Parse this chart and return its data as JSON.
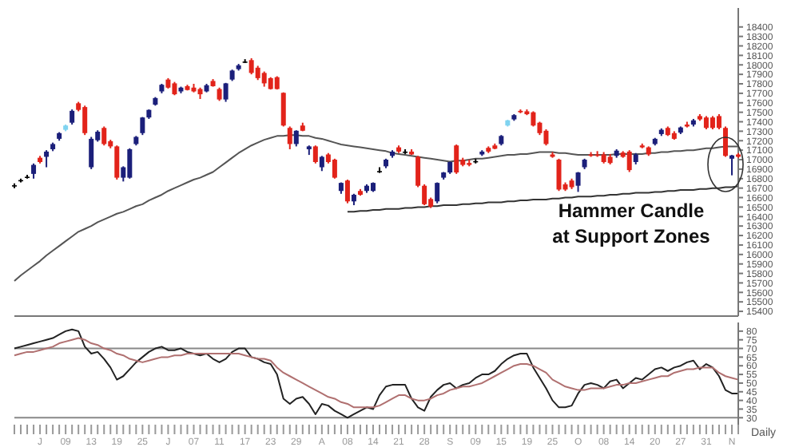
{
  "chart_data": [
    {
      "type": "candlestick",
      "categories": [
        null,
        null,
        null,
        null,
        null,
        null,
        null,
        null,
        null,
        null,
        null,
        null,
        null,
        null,
        null,
        null,
        null,
        null,
        null,
        null,
        null,
        null,
        null,
        null,
        null,
        null,
        null,
        null,
        null,
        null,
        null,
        null,
        null,
        null,
        null,
        null,
        null,
        null,
        null,
        null,
        null,
        null,
        null,
        null,
        null,
        null,
        null,
        null,
        null,
        null,
        null,
        null,
        null,
        null,
        null,
        null,
        null,
        null,
        null,
        null,
        null,
        null,
        null,
        null,
        null,
        null,
        null,
        null,
        null,
        null,
        null,
        null,
        null,
        null,
        null,
        null,
        null,
        null,
        null,
        null,
        null,
        null,
        null,
        null,
        null,
        null,
        null,
        null,
        null,
        null,
        null,
        null,
        null,
        null,
        null,
        null,
        null,
        null,
        null,
        null,
        null,
        null,
        null,
        null,
        null,
        null,
        null,
        null,
        null,
        null,
        null,
        null,
        null,
        null
      ],
      "ohlc": [
        [
          16725,
          16750,
          16700,
          16730
        ],
        [
          16780,
          16800,
          16760,
          16785
        ],
        [
          16815,
          16840,
          16800,
          16820
        ],
        [
          16850,
          16960,
          16800,
          16945
        ],
        [
          17020,
          17040,
          16960,
          16975
        ],
        [
          17030,
          17100,
          16920,
          17085
        ],
        [
          17110,
          17180,
          17090,
          17165
        ],
        [
          17220,
          17290,
          17200,
          17280
        ],
        [
          17315,
          17370,
          17300,
          17360
        ],
        [
          17390,
          17530,
          17370,
          17515
        ],
        [
          17595,
          17610,
          17510,
          17525
        ],
        [
          17555,
          17570,
          17260,
          17280
        ],
        [
          16920,
          17240,
          16900,
          17220
        ],
        [
          17205,
          17310,
          17190,
          17295
        ],
        [
          17335,
          17350,
          17150,
          17165
        ],
        [
          17195,
          17210,
          17120,
          17140
        ],
        [
          17140,
          17150,
          16790,
          16810
        ],
        [
          16810,
          16930,
          16770,
          16920
        ],
        [
          16810,
          17120,
          16800,
          17110
        ],
        [
          17165,
          17250,
          17150,
          17240
        ],
        [
          17280,
          17450,
          17260,
          17445
        ],
        [
          17445,
          17530,
          17430,
          17525
        ],
        [
          17580,
          17660,
          17570,
          17650
        ],
        [
          17720,
          17800,
          17700,
          17790
        ],
        [
          17845,
          17860,
          17750,
          17760
        ],
        [
          17805,
          17820,
          17680,
          17690
        ],
        [
          17720,
          17770,
          17700,
          17760
        ],
        [
          17775,
          17790,
          17730,
          17735
        ],
        [
          17760,
          17800,
          17710,
          17720
        ],
        [
          17745,
          17760,
          17640,
          17690
        ],
        [
          17720,
          17800,
          17710,
          17785
        ],
        [
          17830,
          17850,
          17770,
          17775
        ],
        [
          17745,
          17760,
          17620,
          17635
        ],
        [
          17635,
          17810,
          17610,
          17805
        ],
        [
          17845,
          17950,
          17830,
          17940
        ],
        [
          17955,
          18010,
          17940,
          17995
        ],
        [
          18035,
          18060,
          18020,
          18035
        ],
        [
          18050,
          18070,
          17900,
          17915
        ],
        [
          17970,
          17990,
          17840,
          17860
        ],
        [
          17915,
          17930,
          17770,
          17805
        ],
        [
          17860,
          17870,
          17740,
          17745
        ],
        [
          17870,
          17880,
          17740,
          17745
        ],
        [
          17705,
          17710,
          17350,
          17360
        ],
        [
          17335,
          17350,
          17110,
          17165
        ],
        [
          17165,
          17310,
          17140,
          17305
        ],
        [
          17360,
          17390,
          17300,
          17305
        ],
        [
          17110,
          17150,
          17050,
          17140
        ],
        [
          17140,
          17150,
          16960,
          16975
        ],
        [
          16920,
          17040,
          16880,
          17030
        ],
        [
          17055,
          17070,
          16960,
          16975
        ],
        [
          17000,
          17010,
          16800,
          16810
        ],
        [
          16670,
          16760,
          16640,
          16755
        ],
        [
          16780,
          16790,
          16540,
          16560
        ],
        [
          16560,
          16640,
          16520,
          16630
        ],
        [
          16670,
          16690,
          16620,
          16630
        ],
        [
          16670,
          16740,
          16650,
          16725
        ],
        [
          16670,
          16760,
          16660,
          16755
        ],
        [
          16880,
          16920,
          16860,
          16880
        ],
        [
          16930,
          17010,
          16910,
          17000
        ],
        [
          17040,
          17100,
          17020,
          17085
        ],
        [
          17130,
          17150,
          17070,
          17085
        ],
        [
          17085,
          17110,
          17060,
          17080
        ],
        [
          17085,
          17110,
          17050,
          17055
        ],
        [
          17030,
          17040,
          16710,
          16725
        ],
        [
          16725,
          16740,
          16520,
          16530
        ],
        [
          16585,
          16600,
          16490,
          16505
        ],
        [
          16560,
          16760,
          16540,
          16755
        ],
        [
          16810,
          16870,
          16790,
          16865
        ],
        [
          16865,
          16980,
          16850,
          16975
        ],
        [
          17150,
          17160,
          16850,
          16865
        ],
        [
          17000,
          17020,
          16930,
          16945
        ],
        [
          16965,
          17000,
          16930,
          16945
        ],
        [
          16985,
          17010,
          16960,
          16985
        ],
        [
          17055,
          17100,
          17040,
          17085
        ],
        [
          17125,
          17140,
          17070,
          17085
        ],
        [
          17150,
          17170,
          17110,
          17115
        ],
        [
          17165,
          17260,
          17150,
          17250
        ],
        [
          17360,
          17420,
          17350,
          17415
        ],
        [
          17425,
          17480,
          17410,
          17470
        ],
        [
          17515,
          17530,
          17490,
          17500
        ],
        [
          17510,
          17530,
          17470,
          17480
        ],
        [
          17500,
          17510,
          17350,
          17360
        ],
        [
          17390,
          17400,
          17260,
          17280
        ],
        [
          17305,
          17320,
          17150,
          17165
        ],
        [
          17055,
          17080,
          17020,
          17030
        ],
        [
          17000,
          17010,
          16670,
          16685
        ],
        [
          16740,
          16760,
          16670,
          16685
        ],
        [
          16780,
          16800,
          16690,
          16710
        ],
        [
          16725,
          16870,
          16660,
          16865
        ],
        [
          16920,
          17010,
          16900,
          17000
        ],
        [
          17055,
          17080,
          17030,
          17040
        ],
        [
          17055,
          17090,
          17030,
          17040
        ],
        [
          17055,
          17080,
          16960,
          16975
        ],
        [
          17030,
          17060,
          16950,
          16965
        ],
        [
          17040,
          17110,
          17020,
          17095
        ],
        [
          17075,
          17090,
          17020,
          17030
        ],
        [
          17085,
          17100,
          16870,
          16890
        ],
        [
          16975,
          17070,
          16950,
          17055
        ],
        [
          17150,
          17170,
          17120,
          17130
        ],
        [
          17130,
          17140,
          17040,
          17055
        ],
        [
          17165,
          17230,
          17150,
          17220
        ],
        [
          17270,
          17330,
          17250,
          17315
        ],
        [
          17335,
          17350,
          17250,
          17260
        ],
        [
          17280,
          17300,
          17210,
          17220
        ],
        [
          17285,
          17350,
          17270,
          17340
        ],
        [
          17370,
          17400,
          17340,
          17350
        ],
        [
          17370,
          17430,
          17350,
          17415
        ],
        [
          17460,
          17480,
          17410,
          17425
        ],
        [
          17445,
          17460,
          17320,
          17335
        ],
        [
          17445,
          17460,
          17320,
          17335
        ],
        [
          17460,
          17480,
          17320,
          17335
        ],
        [
          17335,
          17350,
          17030,
          17040
        ],
        [
          17010,
          17050,
          16835,
          17045
        ],
        [
          17055,
          17070,
          17020,
          17030
        ]
      ],
      "colors": [
        "#000000",
        "#000000",
        "#000000",
        "#1b1f7a",
        "#e2231a",
        "#1b1f7a",
        "#1b1f7a",
        "#1b1f7a",
        "#7fd3f0",
        "#1b1f7a",
        "#e2231a",
        "#e2231a",
        "#1b1f7a",
        "#1b1f7a",
        "#e2231a",
        "#e2231a",
        "#e2231a",
        "#1b1f7a",
        "#1b1f7a",
        "#1b1f7a",
        "#1b1f7a",
        "#1b1f7a",
        "#1b1f7a",
        "#1b1f7a",
        "#e2231a",
        "#e2231a",
        "#1b1f7a",
        "#e2231a",
        "#e2231a",
        "#e2231a",
        "#1b1f7a",
        "#e2231a",
        "#e2231a",
        "#1b1f7a",
        "#1b1f7a",
        "#1b1f7a",
        "#000000",
        "#e2231a",
        "#e2231a",
        "#e2231a",
        "#e2231a",
        "#e2231a",
        "#e2231a",
        "#e2231a",
        "#1b1f7a",
        "#e2231a",
        "#1b1f7a",
        "#e2231a",
        "#1b1f7a",
        "#e2231a",
        "#e2231a",
        "#1b1f7a",
        "#e2231a",
        "#1b1f7a",
        "#e2231a",
        "#1b1f7a",
        "#1b1f7a",
        "#000000",
        "#1b1f7a",
        "#1b1f7a",
        "#e2231a",
        "#000000",
        "#e2231a",
        "#e2231a",
        "#e2231a",
        "#e2231a",
        "#1b1f7a",
        "#1b1f7a",
        "#1b1f7a",
        "#e2231a",
        "#e2231a",
        "#e2231a",
        "#000000",
        "#1b1f7a",
        "#e2231a",
        "#e2231a",
        "#1b1f7a",
        "#7fd3f0",
        "#1b1f7a",
        "#e2231a",
        "#e2231a",
        "#e2231a",
        "#e2231a",
        "#e2231a",
        "#e2231a",
        "#e2231a",
        "#e2231a",
        "#e2231a",
        "#1b1f7a",
        "#1b1f7a",
        "#e2231a",
        "#e2231a",
        "#e2231a",
        "#e2231a",
        "#1b1f7a",
        "#e2231a",
        "#e2231a",
        "#1b1f7a",
        "#e2231a",
        "#e2231a",
        "#1b1f7a",
        "#1b1f7a",
        "#e2231a",
        "#e2231a",
        "#1b1f7a",
        "#e2231a",
        "#1b1f7a",
        "#e2231a",
        "#e2231a",
        "#e2231a",
        "#e2231a",
        "#e2231a",
        "#1b1f7a",
        "#e2231a"
      ],
      "series": [
        {
          "type": "line",
          "color": "#555555",
          "values": [
            15720,
            15780,
            15830,
            15880,
            15930,
            15990,
            16040,
            16090,
            16140,
            16190,
            16240,
            16270,
            16300,
            16340,
            16370,
            16400,
            16430,
            16450,
            16480,
            16510,
            16530,
            16570,
            16600,
            16630,
            16670,
            16700,
            16730,
            16760,
            16790,
            16810,
            16840,
            16870,
            16920,
            16970,
            17020,
            17070,
            17110,
            17150,
            17180,
            17210,
            17230,
            17250,
            17250,
            17260,
            17260,
            17250,
            17250,
            17230,
            17220,
            17200,
            17180,
            17160,
            17150,
            17140,
            17130,
            17120,
            17110,
            17100,
            17090,
            17070,
            17060,
            17050,
            17040,
            17030,
            17020,
            17010,
            17000,
            16990,
            16980,
            16990,
            16990,
            17000,
            17010,
            17010,
            17020,
            17030,
            17040,
            17050,
            17050,
            17060,
            17060,
            17070,
            17080,
            17080,
            17080,
            17070,
            17070,
            17060,
            17050,
            17050,
            17050,
            17050,
            17050,
            17050,
            17060,
            17060,
            17060,
            17060,
            17060,
            17070,
            17070,
            17080,
            17080,
            17090,
            17090,
            17100,
            17100,
            17110,
            17120,
            17120,
            17130,
            17140,
            17140,
            17140
          ]
        },
        {
          "type": "line",
          "color": "#333333",
          "values": [
            null,
            null,
            null,
            null,
            null,
            null,
            null,
            null,
            null,
            null,
            null,
            null,
            null,
            null,
            null,
            null,
            null,
            null,
            null,
            null,
            null,
            null,
            null,
            null,
            null,
            null,
            null,
            null,
            null,
            null,
            null,
            null,
            null,
            null,
            null,
            null,
            null,
            null,
            null,
            null,
            null,
            null,
            null,
            null,
            null,
            null,
            null,
            null,
            null,
            null,
            null,
            null,
            16450,
            16450,
            16460,
            16460,
            16470,
            16470,
            16480,
            16480,
            16480,
            16490,
            16490,
            16500,
            16500,
            16510,
            16510,
            16520,
            16520,
            16520,
            16530,
            16530,
            16540,
            16540,
            16550,
            16550,
            16550,
            16560,
            16560,
            16570,
            16570,
            16580,
            16580,
            16580,
            16590,
            16590,
            16600,
            16600,
            16610,
            16610,
            16610,
            16620,
            16620,
            16630,
            16630,
            16640,
            16640,
            16650,
            16650,
            16650,
            16660,
            16660,
            16670,
            16670,
            16680,
            16680,
            16680,
            16690,
            16690,
            16700,
            16700,
            16710,
            16710,
            16720
          ]
        }
      ],
      "ylim": [
        15350,
        18600
      ],
      "yticks": [
        15400,
        15500,
        15600,
        15700,
        15800,
        15900,
        16000,
        16100,
        16200,
        16300,
        16400,
        16500,
        16600,
        16700,
        16800,
        16900,
        17000,
        17100,
        17200,
        17300,
        17400,
        17500,
        17600,
        17700,
        17800,
        17900,
        18000,
        18100,
        18200,
        18300,
        18400
      ],
      "tick_labels": "y",
      "annotations": [
        "Hammer Candle",
        "at Support Zones"
      ]
    },
    {
      "type": "line",
      "categories": [
        null,
        null,
        null,
        null,
        "J",
        null,
        null,
        null,
        "09",
        null,
        null,
        null,
        "13",
        null,
        null,
        null,
        "19",
        null,
        null,
        null,
        "25",
        null,
        null,
        null,
        "J",
        null,
        null,
        null,
        "07",
        null,
        null,
        null,
        "11",
        null,
        null,
        null,
        "17",
        null,
        null,
        null,
        "23",
        null,
        null,
        null,
        "29",
        null,
        null,
        null,
        "A",
        null,
        null,
        null,
        "08",
        null,
        null,
        null,
        "14",
        null,
        null,
        null,
        "21",
        null,
        null,
        null,
        "28",
        null,
        null,
        null,
        "S",
        null,
        null,
        null,
        "09",
        null,
        null,
        null,
        "15",
        null,
        null,
        null,
        "19",
        null,
        null,
        null,
        "25",
        null,
        null,
        null,
        "O",
        null,
        null,
        null,
        "08",
        null,
        null,
        null,
        "14",
        null,
        null,
        null,
        "20",
        null,
        null,
        null,
        "27",
        null,
        null,
        null,
        "31",
        null,
        null,
        null,
        "N",
        null
      ],
      "series": [
        {
          "color": "#222222",
          "values": [
            70,
            71,
            72,
            73,
            74,
            75,
            76,
            78,
            80,
            81,
            80,
            71,
            67,
            68,
            64,
            59,
            52,
            54,
            58,
            62,
            65,
            68,
            70,
            71,
            69,
            69,
            70,
            68,
            67,
            66,
            67,
            64,
            62,
            64,
            68,
            70,
            70,
            65,
            64,
            62,
            61,
            55,
            41,
            38,
            41,
            42,
            38,
            32,
            38,
            37,
            34,
            32,
            30,
            32,
            34,
            36,
            35,
            43,
            48,
            49,
            49,
            49,
            41,
            36,
            34,
            42,
            46,
            49,
            50,
            47,
            49,
            50,
            53,
            55,
            55,
            57,
            61,
            64,
            66,
            67,
            67,
            59,
            53,
            47,
            40,
            36,
            36,
            37,
            44,
            49,
            50,
            49,
            47,
            51,
            52,
            47,
            50,
            53,
            52,
            55,
            58,
            59,
            57,
            59,
            60,
            62,
            63,
            58,
            61,
            59,
            54,
            46,
            44,
            44
          ]
        },
        {
          "color": "#b07070",
          "values": [
            66,
            67,
            68,
            68,
            69,
            70,
            71,
            73,
            74,
            75,
            76,
            75,
            73,
            72,
            70,
            69,
            67,
            66,
            64,
            63,
            62,
            63,
            64,
            65,
            65,
            66,
            66,
            67,
            67,
            67,
            67,
            67,
            67,
            67,
            67,
            67,
            66,
            65,
            64,
            64,
            63,
            59,
            56,
            54,
            52,
            50,
            48,
            46,
            44,
            42,
            41,
            39,
            38,
            36,
            36,
            36,
            36,
            37,
            39,
            41,
            43,
            43,
            41,
            40,
            40,
            41,
            43,
            44,
            46,
            47,
            48,
            48,
            49,
            50,
            52,
            54,
            56,
            58,
            60,
            61,
            61,
            60,
            58,
            56,
            52,
            50,
            48,
            47,
            46,
            46,
            47,
            47,
            47,
            48,
            49,
            49,
            50,
            50,
            51,
            52,
            53,
            54,
            54,
            56,
            57,
            58,
            58,
            59,
            59,
            59,
            56,
            54,
            53,
            52
          ]
        }
      ],
      "ylim": [
        26,
        85
      ],
      "yticks": [
        30,
        35,
        40,
        45,
        50,
        55,
        60,
        65,
        70,
        75,
        80
      ],
      "ref_lines": [
        {
          "axis": "y",
          "value": 70,
          "color": "#888888"
        },
        {
          "axis": "y",
          "value": 30,
          "color": "#888888"
        }
      ],
      "annotations": [
        "Daily"
      ]
    }
  ]
}
